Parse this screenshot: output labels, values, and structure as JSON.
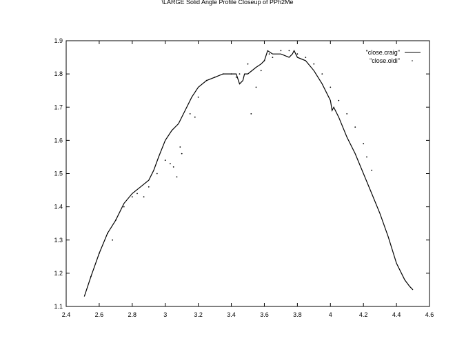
{
  "chart_data": {
    "type": "line",
    "title": "\\LARGE Solid Angle Profile Closeup of PPh2Me",
    "xlabel": "",
    "ylabel": "",
    "xlim": [
      2.4,
      4.6
    ],
    "ylim": [
      1.1,
      1.9
    ],
    "xticks": [
      2.4,
      2.6,
      2.8,
      3,
      3.2,
      3.4,
      3.6,
      3.8,
      4,
      4.2,
      4.4,
      4.6
    ],
    "xtick_labels": [
      "2.4",
      "2.6",
      "2.8",
      "3",
      "3.2",
      "3.4",
      "3.6",
      "3.8",
      "4",
      "4.2",
      "4.4",
      "4.6"
    ],
    "yticks": [
      1.1,
      1.2,
      1.3,
      1.4,
      1.5,
      1.6,
      1.7,
      1.8,
      1.9
    ],
    "ytick_labels": [
      "1.1",
      "1.2",
      "1.3",
      "1.4",
      "1.5",
      "1.6",
      "1.7",
      "1.8",
      "1.9"
    ],
    "grid": false,
    "legend_position": "top-right",
    "series": [
      {
        "name": "\"close.craig\"",
        "style": "line",
        "color": "#000000",
        "x": [
          2.51,
          2.55,
          2.6,
          2.65,
          2.7,
          2.75,
          2.8,
          2.85,
          2.9,
          2.93,
          2.96,
          3.0,
          3.04,
          3.08,
          3.12,
          3.16,
          3.2,
          3.25,
          3.3,
          3.35,
          3.4,
          3.43,
          3.45,
          3.47,
          3.48,
          3.5,
          3.55,
          3.58,
          3.6,
          3.62,
          3.65,
          3.7,
          3.75,
          3.77,
          3.78,
          3.8,
          3.85,
          3.9,
          3.95,
          4.0,
          4.01,
          4.02,
          4.05,
          4.1,
          4.15,
          4.2,
          4.25,
          4.3,
          4.35,
          4.4,
          4.45,
          4.48,
          4.5
        ],
        "y": [
          1.13,
          1.19,
          1.26,
          1.32,
          1.36,
          1.41,
          1.44,
          1.46,
          1.48,
          1.51,
          1.55,
          1.6,
          1.63,
          1.65,
          1.69,
          1.73,
          1.76,
          1.78,
          1.79,
          1.8,
          1.8,
          1.8,
          1.77,
          1.78,
          1.8,
          1.8,
          1.82,
          1.83,
          1.84,
          1.87,
          1.86,
          1.86,
          1.85,
          1.86,
          1.87,
          1.85,
          1.84,
          1.81,
          1.77,
          1.72,
          1.69,
          1.7,
          1.67,
          1.61,
          1.56,
          1.5,
          1.44,
          1.38,
          1.31,
          1.23,
          1.18,
          1.16,
          1.15
        ]
      },
      {
        "name": "\"close.oldi\"",
        "style": "points",
        "color": "#000000",
        "x": [
          2.55,
          2.6,
          2.65,
          2.68,
          2.7,
          2.75,
          2.8,
          2.83,
          2.87,
          2.9,
          2.95,
          3.0,
          3.03,
          3.05,
          3.07,
          3.09,
          3.1,
          3.15,
          3.18,
          3.2,
          3.25,
          3.3,
          3.35,
          3.4,
          3.43,
          3.45,
          3.5,
          3.52,
          3.55,
          3.58,
          3.6,
          3.63,
          3.65,
          3.7,
          3.75,
          3.8,
          3.85,
          3.9,
          3.95,
          4.0,
          4.05,
          4.1,
          4.15,
          4.2,
          4.22,
          4.25
        ],
        "y": [
          1.19,
          1.26,
          1.32,
          1.3,
          1.36,
          1.4,
          1.43,
          1.44,
          1.43,
          1.46,
          1.5,
          1.54,
          1.53,
          1.52,
          1.49,
          1.58,
          1.56,
          1.68,
          1.67,
          1.73,
          1.78,
          1.79,
          1.8,
          1.8,
          1.79,
          1.8,
          1.83,
          1.68,
          1.76,
          1.81,
          1.84,
          1.86,
          1.85,
          1.87,
          1.87,
          1.86,
          1.85,
          1.83,
          1.8,
          1.76,
          1.72,
          1.68,
          1.64,
          1.59,
          1.55,
          1.51
        ]
      }
    ]
  }
}
